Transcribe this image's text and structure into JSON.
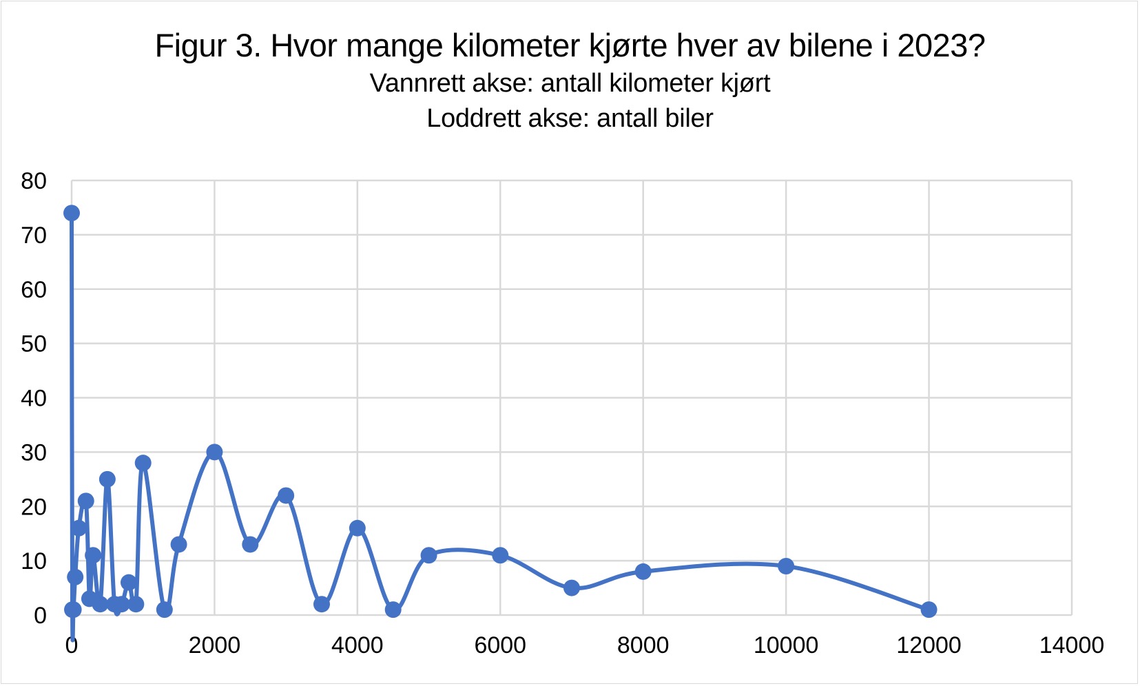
{
  "chart_data": {
    "type": "scatter",
    "title": "Figur 3. Hvor mange kilometer kjørte hver av bilene i 2023?",
    "subtitles": [
      "Vannrett akse: antall kilometer kjørt",
      "Loddrett akse: antall biler"
    ],
    "xlabel": "antall kilometer kjørt",
    "ylabel": "antall biler",
    "xlim": [
      0,
      14000
    ],
    "ylim": [
      0,
      80
    ],
    "x_ticks": [
      "0",
      "2000",
      "4000",
      "6000",
      "8000",
      "10000",
      "12000",
      "14000"
    ],
    "y_ticks": [
      "0",
      "10",
      "20",
      "30",
      "40",
      "50",
      "60",
      "70",
      "80"
    ],
    "grid": true,
    "line_style": "smoothed",
    "color": "#4472c4",
    "series": [
      {
        "name": "Antall biler",
        "x": [
          0,
          10,
          25,
          50,
          100,
          200,
          250,
          300,
          400,
          500,
          600,
          700,
          800,
          900,
          1000,
          1300,
          1500,
          2000,
          2500,
          3000,
          3500,
          4000,
          4500,
          5000,
          6000,
          7000,
          8000,
          10000,
          12000
        ],
        "y": [
          74,
          1,
          1,
          7,
          16,
          21,
          3,
          11,
          2,
          25,
          2,
          2,
          6,
          2,
          28,
          1,
          13,
          30,
          13,
          22,
          2,
          16,
          1,
          11,
          11,
          5,
          8,
          9,
          1
        ]
      }
    ]
  }
}
